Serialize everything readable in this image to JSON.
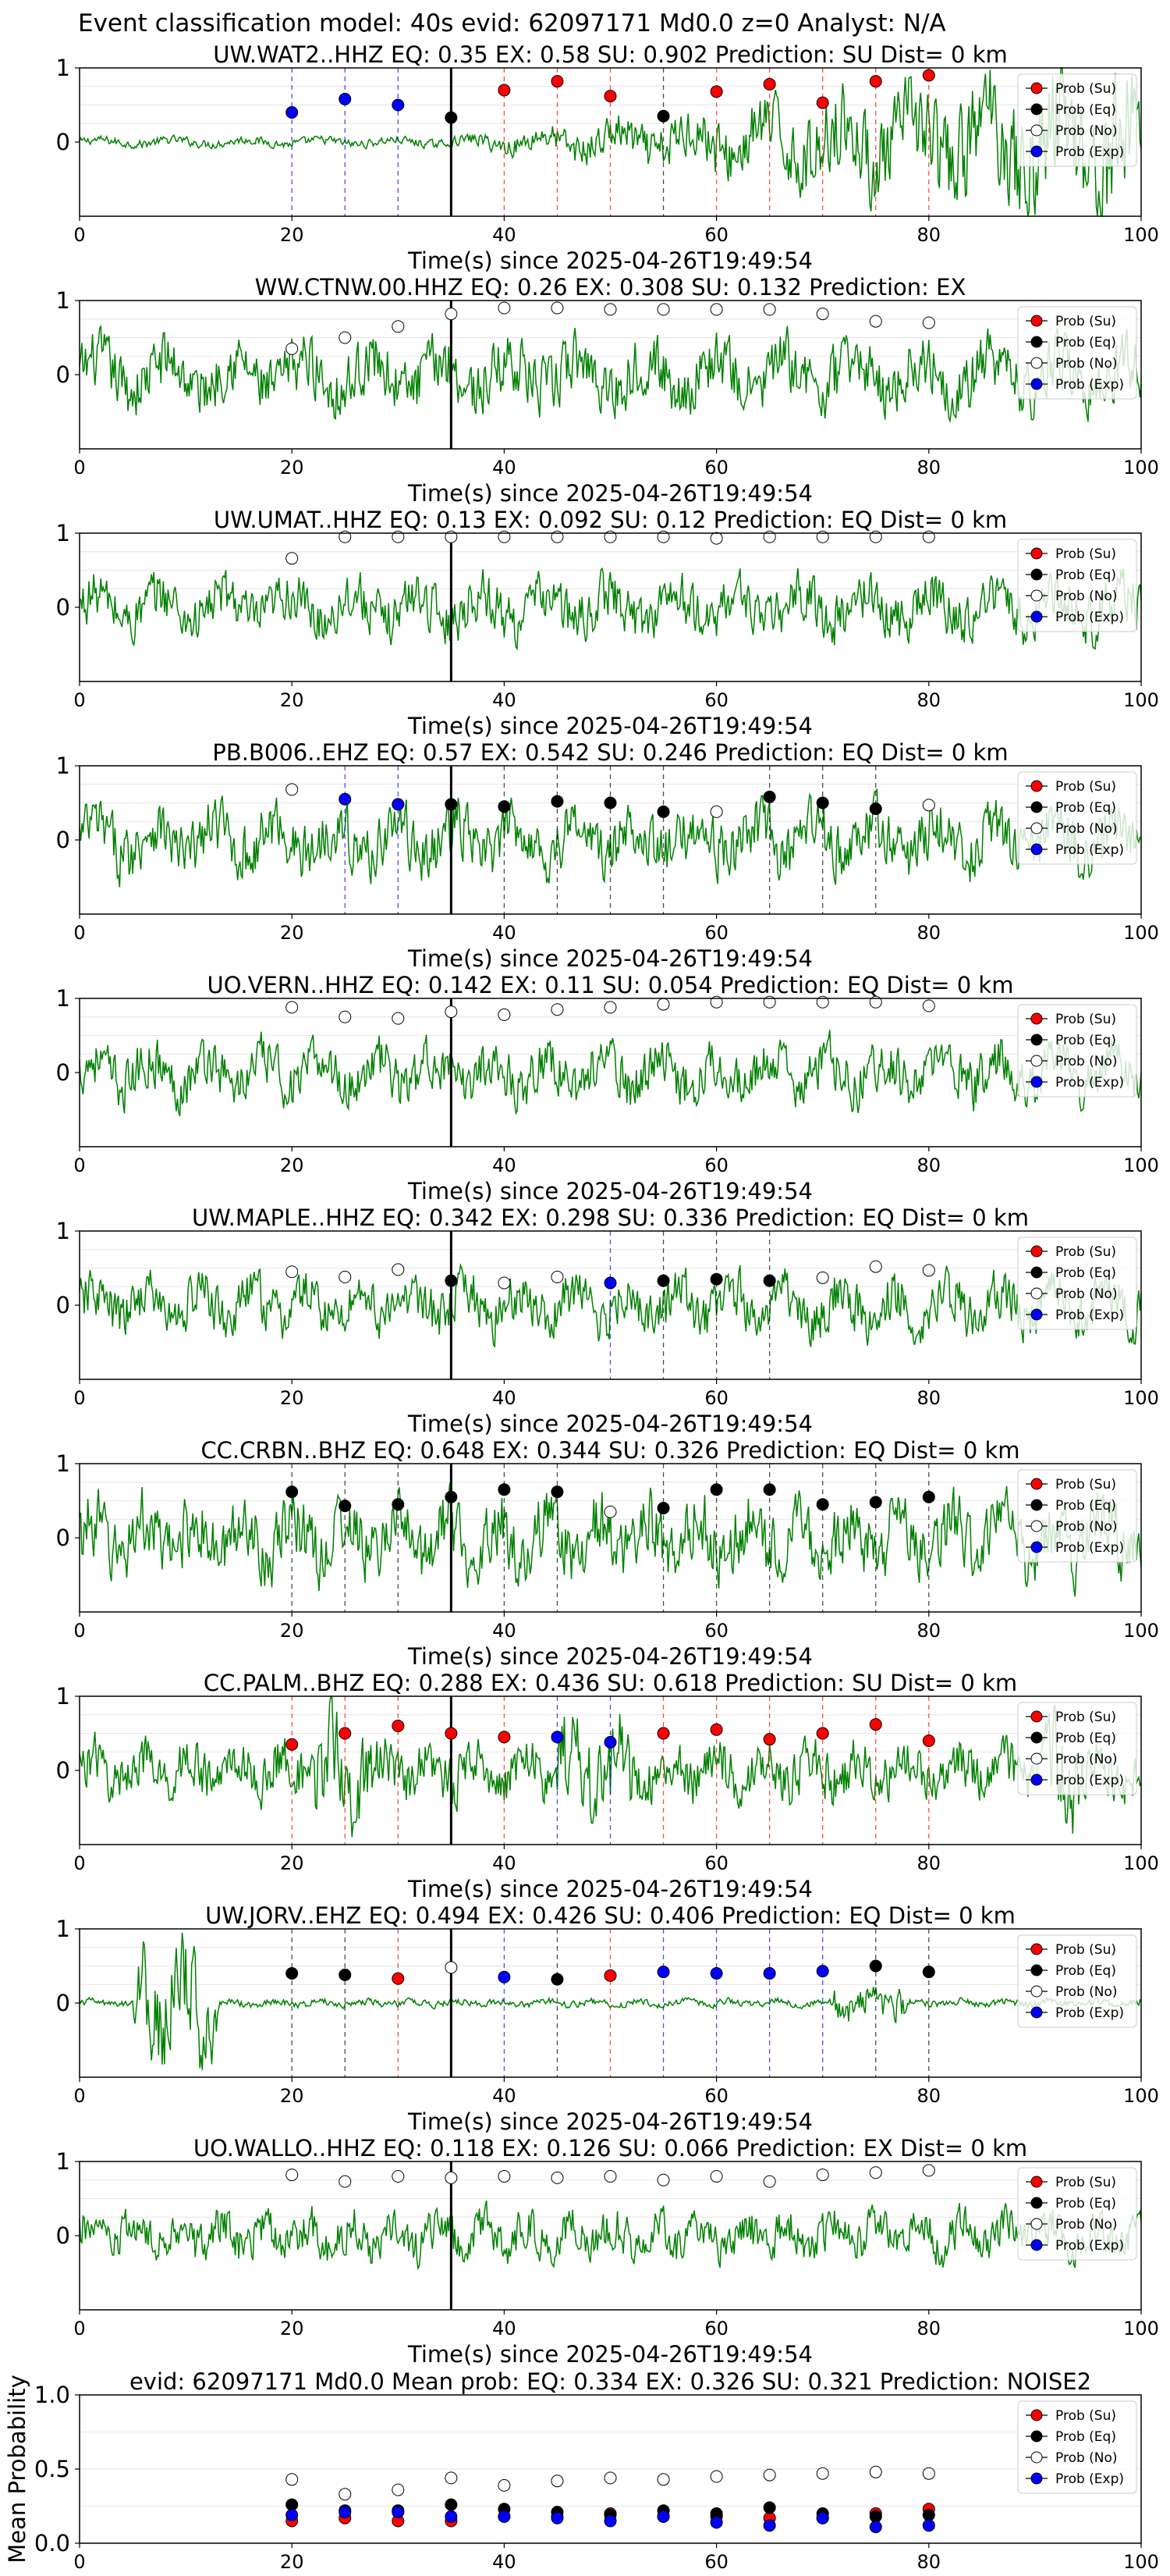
{
  "suptitle": "Event classification model: 40s evid: 62097171 Md0.0 z=0 Analyst: N/A",
  "chart_data": {
    "type": "scatter",
    "xlim": [
      0,
      100
    ],
    "x_ticks": [
      "0",
      "20",
      "40",
      "60",
      "80",
      "100"
    ],
    "legend": {
      "placement": "top-right",
      "entries": [
        {
          "label": "Prob (Su)",
          "color": "#ff0000"
        },
        {
          "label": "Prob (Eq)",
          "color": "#000000"
        },
        {
          "label": "Prob (No)",
          "color": "#ffffff"
        },
        {
          "label": "Prob (Exp)",
          "color": "#0000ff"
        }
      ]
    },
    "colors": {
      "su": "#ff0000",
      "eq": "#000000",
      "no": "#ffffff",
      "exp": "#0000ff",
      "waveform": "#008000",
      "pick_line": "#000000"
    },
    "window_times": [
      20,
      25,
      30,
      35,
      40,
      45,
      50,
      55,
      60,
      65,
      70,
      75,
      80
    ],
    "pick_time": 35,
    "stations": [
      {
        "title": "UW.WAT2..HHZ   EQ: 0.35   EX: 0.58   SU: 0.902   Prediction: SU    Dist= 0 km",
        "xlabel": "Time(s) since 2025-04-26T19:49:54",
        "ylim": [
          -1,
          1
        ],
        "y_ticks": [
          "1",
          "0"
        ],
        "classes": [
          "exp",
          "exp",
          "exp",
          "eq",
          "su",
          "su",
          "su",
          "eq",
          "su",
          "su",
          "su",
          "su",
          "su"
        ],
        "probs": [
          0.4,
          0.58,
          0.5,
          0.33,
          0.7,
          0.82,
          0.62,
          0.35,
          0.68,
          0.78,
          0.53,
          0.82,
          0.9
        ]
      },
      {
        "title": "WW.CTNW.00.HHZ   EQ: 0.26   EX: 0.308   SU: 0.132   Prediction: EX",
        "xlabel": "Time(s) since 2025-04-26T19:49:54",
        "ylim": [
          -1,
          1
        ],
        "y_ticks": [
          "1",
          "0"
        ],
        "classes": [
          "no",
          "no",
          "no",
          "no",
          "no",
          "no",
          "no",
          "no",
          "no",
          "no",
          "no",
          "no",
          "no"
        ],
        "probs": [
          0.35,
          0.5,
          0.65,
          0.82,
          0.9,
          0.9,
          0.88,
          0.88,
          0.88,
          0.88,
          0.82,
          0.72,
          0.7
        ]
      },
      {
        "title": "UW.UMAT..HHZ   EQ: 0.13   EX: 0.092   SU: 0.12   Prediction: EQ    Dist= 0 km",
        "xlabel": "Time(s) since 2025-04-26T19:49:54",
        "ylim": [
          -1,
          1
        ],
        "y_ticks": [
          "1",
          "0"
        ],
        "classes": [
          "no",
          "no",
          "no",
          "no",
          "no",
          "no",
          "no",
          "no",
          "no",
          "no",
          "no",
          "no",
          "no"
        ],
        "probs": [
          0.66,
          0.95,
          0.95,
          0.95,
          0.95,
          0.95,
          0.95,
          0.95,
          0.93,
          0.95,
          0.95,
          0.95,
          0.95
        ]
      },
      {
        "title": "PB.B006..EHZ   EQ: 0.57   EX: 0.542   SU: 0.246   Prediction: EQ    Dist= 0 km",
        "xlabel": "Time(s) since 2025-04-26T19:49:54",
        "ylim": [
          -1,
          1
        ],
        "y_ticks": [
          "1",
          "0"
        ],
        "classes": [
          "no",
          "exp",
          "exp",
          "eq",
          "eq",
          "eq",
          "eq",
          "eq",
          "no",
          "eq",
          "eq",
          "eq",
          "no"
        ],
        "probs": [
          0.68,
          0.55,
          0.48,
          0.48,
          0.45,
          0.52,
          0.5,
          0.38,
          0.38,
          0.58,
          0.5,
          0.42,
          0.47
        ]
      },
      {
        "title": "UO.VERN..HHZ   EQ: 0.142   EX: 0.11   SU: 0.054   Prediction: EQ    Dist= 0 km",
        "xlabel": "Time(s) since 2025-04-26T19:49:54",
        "ylim": [
          -1,
          1
        ],
        "y_ticks": [
          "1",
          "0"
        ],
        "classes": [
          "no",
          "no",
          "no",
          "no",
          "no",
          "no",
          "no",
          "no",
          "no",
          "no",
          "no",
          "no",
          "no"
        ],
        "probs": [
          0.88,
          0.75,
          0.73,
          0.82,
          0.78,
          0.85,
          0.88,
          0.92,
          0.95,
          0.95,
          0.95,
          0.95,
          0.9
        ]
      },
      {
        "title": "UW.MAPLE..HHZ   EQ: 0.342   EX: 0.298   SU: 0.336   Prediction: EQ    Dist= 0 km",
        "xlabel": "Time(s) since 2025-04-26T19:49:54",
        "ylim": [
          -1,
          1
        ],
        "y_ticks": [
          "1",
          "0"
        ],
        "classes": [
          "no",
          "no",
          "no",
          "eq",
          "no",
          "no",
          "exp",
          "eq",
          "eq",
          "eq",
          "no",
          "no",
          "no"
        ],
        "probs": [
          0.45,
          0.38,
          0.48,
          0.33,
          0.3,
          0.38,
          0.3,
          0.33,
          0.35,
          0.33,
          0.37,
          0.52,
          0.47
        ]
      },
      {
        "title": "CC.CRBN..BHZ   EQ: 0.648   EX: 0.344   SU: 0.326   Prediction: EQ    Dist= 0 km",
        "xlabel": "Time(s) since 2025-04-26T19:49:54",
        "ylim": [
          -1,
          1
        ],
        "y_ticks": [
          "1",
          "0"
        ],
        "classes": [
          "eq",
          "eq",
          "eq",
          "eq",
          "eq",
          "eq",
          "no",
          "eq",
          "eq",
          "eq",
          "eq",
          "eq",
          "eq"
        ],
        "probs": [
          0.62,
          0.43,
          0.45,
          0.55,
          0.65,
          0.62,
          0.35,
          0.4,
          0.65,
          0.65,
          0.45,
          0.48,
          0.55
        ]
      },
      {
        "title": "CC.PALM..BHZ   EQ: 0.288   EX: 0.436   SU: 0.618   Prediction: SU    Dist= 0 km",
        "xlabel": "Time(s) since 2025-04-26T19:49:54",
        "ylim": [
          -1,
          1
        ],
        "y_ticks": [
          "1",
          "0"
        ],
        "classes": [
          "su",
          "su",
          "su",
          "su",
          "su",
          "exp",
          "exp",
          "su",
          "su",
          "su",
          "su",
          "su",
          "su"
        ],
        "probs": [
          0.35,
          0.5,
          0.6,
          0.5,
          0.45,
          0.45,
          0.38,
          0.5,
          0.55,
          0.42,
          0.5,
          0.62,
          0.4
        ]
      },
      {
        "title": "UW.JORV..EHZ   EQ: 0.494   EX: 0.426   SU: 0.406   Prediction: EQ    Dist= 0 km",
        "xlabel": "Time(s) since 2025-04-26T19:49:54",
        "ylim": [
          -1,
          1
        ],
        "y_ticks": [
          "1",
          "0"
        ],
        "classes": [
          "eq",
          "eq",
          "su",
          "no",
          "exp",
          "eq",
          "su",
          "exp",
          "exp",
          "exp",
          "exp",
          "eq",
          "eq"
        ],
        "probs": [
          0.4,
          0.38,
          0.33,
          0.48,
          0.35,
          0.32,
          0.37,
          0.42,
          0.4,
          0.4,
          0.43,
          0.5,
          0.42
        ]
      },
      {
        "title": "UO.WALLO..HHZ   EQ: 0.118   EX: 0.126   SU: 0.066   Prediction: EX    Dist= 0 km",
        "xlabel": "Time(s) since 2025-04-26T19:49:54",
        "ylim": [
          -1,
          1
        ],
        "y_ticks": [
          "1",
          "0"
        ],
        "classes": [
          "no",
          "no",
          "no",
          "no",
          "no",
          "no",
          "no",
          "no",
          "no",
          "no",
          "no",
          "no",
          "no"
        ],
        "probs": [
          0.82,
          0.73,
          0.8,
          0.78,
          0.8,
          0.78,
          0.8,
          0.75,
          0.8,
          0.73,
          0.82,
          0.85,
          0.88
        ]
      }
    ],
    "summary": {
      "title": "evid: 62097171  Md0.0   Mean prob:   EQ: 0.334  EX: 0.326  SU: 0.321   Prediction: NOISE2",
      "ylabel": "Mean Probability",
      "ylim": [
        0,
        1
      ],
      "y_ticks": [
        "0.0",
        "0.5",
        "1.0"
      ],
      "series": [
        {
          "name": "Prob (Su)",
          "class": "su",
          "values": [
            0.15,
            0.17,
            0.15,
            0.15,
            0.18,
            0.18,
            0.2,
            0.18,
            0.18,
            0.17,
            0.17,
            0.2,
            0.23
          ]
        },
        {
          "name": "Prob (Eq)",
          "class": "eq",
          "values": [
            0.26,
            0.22,
            0.22,
            0.26,
            0.23,
            0.21,
            0.19,
            0.22,
            0.2,
            0.24,
            0.2,
            0.18,
            0.19
          ]
        },
        {
          "name": "Prob (No)",
          "class": "no",
          "values": [
            0.43,
            0.33,
            0.36,
            0.44,
            0.39,
            0.42,
            0.44,
            0.43,
            0.45,
            0.46,
            0.47,
            0.48,
            0.47
          ]
        },
        {
          "name": "Prob (Exp)",
          "class": "exp",
          "values": [
            0.19,
            0.21,
            0.21,
            0.18,
            0.18,
            0.17,
            0.15,
            0.18,
            0.14,
            0.12,
            0.17,
            0.11,
            0.12
          ]
        }
      ]
    }
  }
}
